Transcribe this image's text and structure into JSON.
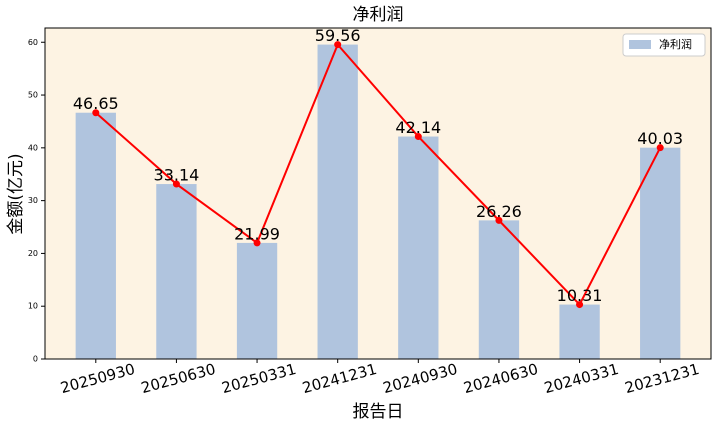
{
  "chart_data": {
    "type": "bar",
    "title": "净利润",
    "x_label": "报告日",
    "y_label": "金额(亿元)",
    "categories": [
      "20250930",
      "20250630",
      "20250331",
      "20241231",
      "20240930",
      "20240630",
      "20240331",
      "20231231"
    ],
    "series": [
      {
        "name": "净利润",
        "color": "#b0c4de",
        "values": [
          46.65,
          33.14,
          21.99,
          59.56,
          42.14,
          26.26,
          10.31,
          40.03
        ]
      }
    ],
    "line_color": "#ff0000",
    "ylim": [
      0,
      62.7
    ],
    "yticks": [
      0,
      10,
      20,
      30,
      40,
      50,
      60
    ],
    "legend": "upper right",
    "background": "#fdf3e3"
  }
}
